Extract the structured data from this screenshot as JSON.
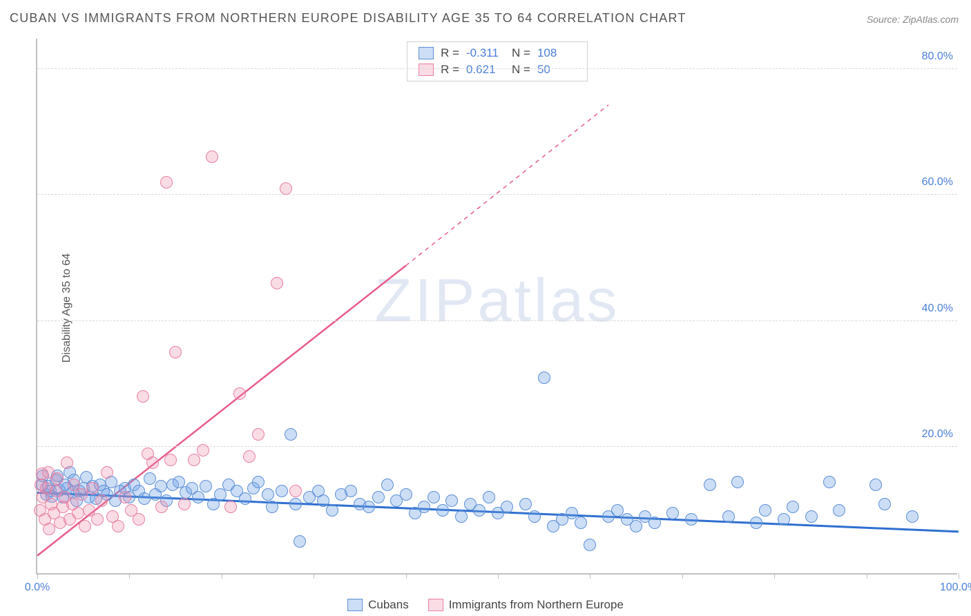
{
  "title": "CUBAN VS IMMIGRANTS FROM NORTHERN EUROPE DISABILITY AGE 35 TO 64 CORRELATION CHART",
  "source": "Source: ZipAtlas.com",
  "ylabel": "Disability Age 35 to 64",
  "watermark": {
    "left": "ZIP",
    "right": "atlas"
  },
  "chart": {
    "type": "scatter",
    "background_color": "#ffffff",
    "grid_color": "#d8d8d8",
    "axis_color": "#c0c0c0",
    "tick_label_color": "#4a7fd8",
    "label_fontsize": 16,
    "title_fontsize": 18,
    "xlim": [
      0,
      100
    ],
    "ylim": [
      0,
      85
    ],
    "xtick_positions": [
      0,
      10,
      20,
      30,
      40,
      50,
      60,
      70,
      80,
      90,
      100
    ],
    "xtick_labels": {
      "0": "0.0%",
      "100": "100.0%"
    },
    "ytick_positions": [
      20,
      40,
      60,
      80
    ],
    "ytick_labels": [
      "20.0%",
      "40.0%",
      "60.0%",
      "80.0%"
    ],
    "marker_radius": 9,
    "marker_border_width": 1.5,
    "series": [
      {
        "name": "Cubans",
        "label": "Cubans",
        "fill_color": "rgba(110,160,230,0.35)",
        "stroke_color": "#5b8ed6",
        "R": "-0.311",
        "N": "108",
        "trend": {
          "x1": 0,
          "y1": 13.0,
          "x2": 100,
          "y2": 6.8,
          "color": "#2f6fd0",
          "width": 3,
          "dash": null
        },
        "points": [
          [
            0.5,
            14.0
          ],
          [
            0.6,
            15.5
          ],
          [
            1.0,
            12.5
          ],
          [
            1.2,
            13.8
          ],
          [
            1.4,
            13.0
          ],
          [
            1.6,
            12.2
          ],
          [
            2.0,
            14.8
          ],
          [
            2.2,
            15.5
          ],
          [
            2.4,
            13.2
          ],
          [
            2.8,
            12.0
          ],
          [
            3.0,
            14.0
          ],
          [
            3.2,
            13.5
          ],
          [
            3.5,
            16.0
          ],
          [
            3.8,
            12.8
          ],
          [
            4.0,
            14.8
          ],
          [
            4.3,
            11.5
          ],
          [
            4.6,
            13.0
          ],
          [
            5.0,
            13.5
          ],
          [
            5.3,
            15.2
          ],
          [
            5.6,
            12.0
          ],
          [
            6.0,
            13.8
          ],
          [
            6.4,
            11.8
          ],
          [
            6.8,
            14.0
          ],
          [
            7.2,
            13.0
          ],
          [
            7.6,
            12.5
          ],
          [
            8.0,
            14.5
          ],
          [
            8.5,
            11.5
          ],
          [
            9.0,
            13.0
          ],
          [
            9.5,
            13.5
          ],
          [
            10.0,
            12.0
          ],
          [
            10.5,
            14.0
          ],
          [
            11.0,
            13.0
          ],
          [
            11.6,
            11.8
          ],
          [
            12.2,
            15.0
          ],
          [
            12.8,
            12.5
          ],
          [
            13.4,
            13.8
          ],
          [
            14.0,
            11.5
          ],
          [
            14.7,
            14.0
          ],
          [
            15.4,
            14.5
          ],
          [
            16.1,
            12.8
          ],
          [
            16.8,
            13.5
          ],
          [
            17.5,
            12.0
          ],
          [
            18.3,
            13.8
          ],
          [
            19.1,
            11.0
          ],
          [
            19.9,
            12.5
          ],
          [
            20.8,
            14.0
          ],
          [
            21.7,
            13.0
          ],
          [
            22.6,
            11.8
          ],
          [
            23.5,
            13.5
          ],
          [
            24.0,
            14.5
          ],
          [
            25.0,
            12.5
          ],
          [
            25.5,
            10.5
          ],
          [
            26.5,
            13.0
          ],
          [
            27.5,
            22.0
          ],
          [
            28.0,
            11.0
          ],
          [
            28.5,
            5.0
          ],
          [
            29.5,
            12.0
          ],
          [
            30.5,
            13.0
          ],
          [
            31.0,
            11.5
          ],
          [
            32.0,
            10.0
          ],
          [
            33.0,
            12.5
          ],
          [
            34.0,
            13.0
          ],
          [
            35.0,
            11.0
          ],
          [
            36.0,
            10.5
          ],
          [
            37.0,
            12.0
          ],
          [
            38.0,
            14.0
          ],
          [
            39.0,
            11.5
          ],
          [
            40.0,
            12.5
          ],
          [
            41.0,
            9.5
          ],
          [
            42.0,
            10.5
          ],
          [
            43.0,
            12.0
          ],
          [
            44.0,
            10.0
          ],
          [
            45.0,
            11.5
          ],
          [
            46.0,
            9.0
          ],
          [
            47.0,
            11.0
          ],
          [
            48.0,
            10.0
          ],
          [
            49.0,
            12.0
          ],
          [
            50.0,
            9.5
          ],
          [
            51.0,
            10.5
          ],
          [
            53.0,
            11.0
          ],
          [
            54.0,
            9.0
          ],
          [
            55.0,
            31.0
          ],
          [
            56.0,
            7.5
          ],
          [
            57.0,
            8.5
          ],
          [
            58.0,
            9.5
          ],
          [
            59.0,
            8.0
          ],
          [
            60.0,
            4.5
          ],
          [
            62.0,
            9.0
          ],
          [
            63.0,
            10.0
          ],
          [
            64.0,
            8.5
          ],
          [
            65.0,
            7.5
          ],
          [
            66.0,
            9.0
          ],
          [
            67.0,
            8.0
          ],
          [
            69.0,
            9.5
          ],
          [
            71.0,
            8.5
          ],
          [
            73.0,
            14.0
          ],
          [
            75.0,
            9.0
          ],
          [
            76.0,
            14.5
          ],
          [
            78.0,
            8.0
          ],
          [
            79.0,
            10.0
          ],
          [
            81.0,
            8.5
          ],
          [
            82.0,
            10.5
          ],
          [
            84.0,
            9.0
          ],
          [
            86.0,
            14.5
          ],
          [
            87.0,
            10.0
          ],
          [
            91.0,
            14.0
          ],
          [
            92.0,
            11.0
          ],
          [
            95.0,
            9.0
          ]
        ]
      },
      {
        "name": "Immigrants from Northern Europe",
        "label": "Immigrants from Northern Europe",
        "fill_color": "rgba(240,140,170,0.30)",
        "stroke_color": "#e87fa3",
        "R": "0.621",
        "N": "50",
        "trend": {
          "x1": 0,
          "y1": 3.0,
          "x2": 40,
          "y2": 49.0,
          "color": "#e85a8a",
          "width": 2.5,
          "dash": null,
          "extend": {
            "x2": 62,
            "y2": 74.5,
            "dash": "6 6"
          }
        },
        "points": [
          [
            0.3,
            10.0
          ],
          [
            0.4,
            14.0
          ],
          [
            0.5,
            15.8
          ],
          [
            0.6,
            12.0
          ],
          [
            0.8,
            8.5
          ],
          [
            1.0,
            13.5
          ],
          [
            1.2,
            16.0
          ],
          [
            1.3,
            7.0
          ],
          [
            1.5,
            11.0
          ],
          [
            1.8,
            9.5
          ],
          [
            2.0,
            13.0
          ],
          [
            2.2,
            15.0
          ],
          [
            2.5,
            8.0
          ],
          [
            2.8,
            10.5
          ],
          [
            3.0,
            12.0
          ],
          [
            3.2,
            17.5
          ],
          [
            3.5,
            8.5
          ],
          [
            3.8,
            11.0
          ],
          [
            4.0,
            14.0
          ],
          [
            4.4,
            9.5
          ],
          [
            4.8,
            12.5
          ],
          [
            5.2,
            7.5
          ],
          [
            5.6,
            10.0
          ],
          [
            6.0,
            13.5
          ],
          [
            6.5,
            8.5
          ],
          [
            7.0,
            11.5
          ],
          [
            7.6,
            16.0
          ],
          [
            8.2,
            9.0
          ],
          [
            8.8,
            7.5
          ],
          [
            9.5,
            12.0
          ],
          [
            10.2,
            10.0
          ],
          [
            11.0,
            8.5
          ],
          [
            11.5,
            28.0
          ],
          [
            12.0,
            19.0
          ],
          [
            12.5,
            17.5
          ],
          [
            13.5,
            10.5
          ],
          [
            14.0,
            62.0
          ],
          [
            14.5,
            18.0
          ],
          [
            15.0,
            35.0
          ],
          [
            16.0,
            11.0
          ],
          [
            17.0,
            18.0
          ],
          [
            18.0,
            19.5
          ],
          [
            19.0,
            66.0
          ],
          [
            21.0,
            10.5
          ],
          [
            22.0,
            28.5
          ],
          [
            23.0,
            18.5
          ],
          [
            24.0,
            22.0
          ],
          [
            26.0,
            46.0
          ],
          [
            27.0,
            61.0
          ],
          [
            28.0,
            13.0
          ]
        ]
      }
    ]
  },
  "legend_top_label_R": "R =",
  "legend_top_label_N": "N ="
}
